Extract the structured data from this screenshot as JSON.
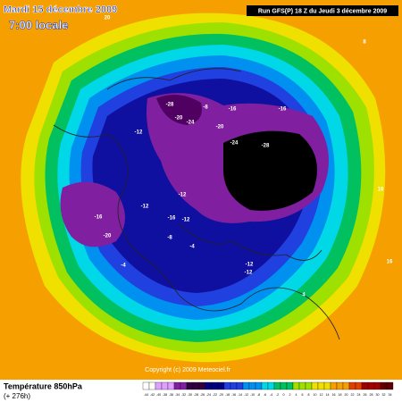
{
  "header": {
    "date": "Mardi 15 décembre 2009",
    "local_time": "7:00 locale",
    "run": "Run GFS(P) 18 Z du Jeudi 3 décembre 2009"
  },
  "footer": {
    "title": "Température 850hPa",
    "lead": "(+ 276h)",
    "copyright": "Copyright (c) 2009 Meteociel.fr"
  },
  "scale": {
    "labels": [
      "-44",
      "-42",
      "-40",
      "-38",
      "-36",
      "-34",
      "-32",
      "-30",
      "-28",
      "-26",
      "-24",
      "-22",
      "-20",
      "-18",
      "-16",
      "-14",
      "-12",
      "-10",
      "-8",
      "-6",
      "-4",
      "-2",
      "0",
      "2",
      "4",
      "6",
      "8",
      "10",
      "12",
      "14",
      "16",
      "18",
      "20",
      "22",
      "24",
      "26",
      "28",
      "30",
      "32",
      "34"
    ]
  },
  "map_labels": [
    "-28",
    "-20",
    "-24",
    "-16",
    "-20",
    "-24",
    "-28",
    "-16",
    "-12",
    "-8",
    "-12",
    "-16",
    "-20",
    "-12",
    "-16",
    "-12",
    "-8",
    "-4",
    "-12",
    "-12",
    "-4",
    "4",
    "8",
    "16",
    "20",
    "16"
  ]
}
